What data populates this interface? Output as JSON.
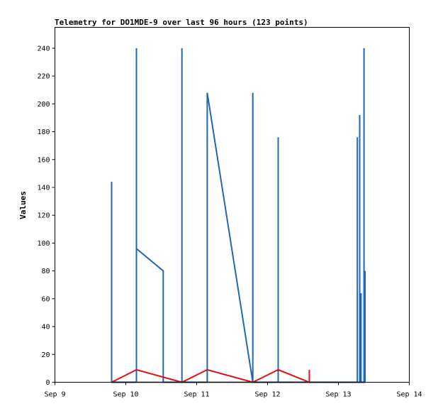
{
  "chart_data": {
    "type": "line",
    "title": "Telemetry for DO1MDE-9 over last 96 hours (123 points)",
    "xlabel": "",
    "ylabel": "Values",
    "xlim": [
      "2023-09-09 00:00",
      "2023-09-14 00:00"
    ],
    "ylim": [
      0,
      255
    ],
    "x_tick_labels": [
      "Sep 9",
      "Sep 10",
      "Sep 11",
      "Sep 12",
      "Sep 13",
      "Sep 14"
    ],
    "y_ticks": [
      0,
      20,
      40,
      60,
      80,
      100,
      120,
      140,
      160,
      180,
      200,
      220,
      240
    ],
    "grid": false,
    "legend": "none",
    "series": [
      {
        "color": "#1f68b8",
        "points": [
          [
            "2023-09-09 19:12",
            0
          ],
          [
            "2023-09-09 19:12",
            144
          ],
          [
            "2023-09-09 19:12",
            0
          ],
          [
            "2023-09-10 03:36",
            0
          ],
          [
            "2023-09-10 03:36",
            240
          ],
          [
            "2023-09-10 03:36",
            96
          ],
          [
            "2023-09-10 12:40",
            80
          ],
          [
            "2023-09-10 12:40",
            0
          ],
          [
            "2023-09-10 19:00",
            0
          ],
          [
            "2023-09-10 19:00",
            240
          ],
          [
            "2023-09-10 19:00",
            0
          ],
          [
            "2023-09-11 03:35",
            0
          ],
          [
            "2023-09-11 03:35",
            208
          ],
          [
            "2023-09-11 19:00",
            0
          ],
          [
            "2023-09-11 19:00",
            208
          ],
          [
            "2023-09-11 19:00",
            0
          ],
          [
            "2023-09-12 03:36",
            0
          ],
          [
            "2023-09-12 03:36",
            176
          ],
          [
            "2023-09-12 03:36",
            0
          ],
          [
            "2023-09-13 06:24",
            0
          ],
          [
            "2023-09-13 06:24",
            176
          ],
          [
            "2023-09-13 06:24",
            0
          ],
          [
            "2023-09-13 07:12",
            0
          ],
          [
            "2023-09-13 07:12",
            192
          ],
          [
            "2023-09-13 07:12",
            0
          ],
          [
            "2023-09-13 07:40",
            0
          ],
          [
            "2023-09-13 07:40",
            64
          ],
          [
            "2023-09-13 07:40",
            0
          ],
          [
            "2023-09-13 08:40",
            0
          ],
          [
            "2023-09-13 08:40",
            240
          ],
          [
            "2023-09-13 08:40",
            0
          ],
          [
            "2023-09-13 09:00",
            0
          ],
          [
            "2023-09-13 09:00",
            80
          ],
          [
            "2023-09-13 09:00",
            0
          ]
        ]
      },
      {
        "color": "#e01010",
        "points": [
          [
            "2023-09-09 19:12",
            0
          ],
          [
            "2023-09-10 03:36",
            9
          ],
          [
            "2023-09-10 19:00",
            0
          ],
          [
            "2023-09-11 03:35",
            9
          ],
          [
            "2023-09-11 19:00",
            0
          ],
          [
            "2023-09-12 03:36",
            9
          ],
          [
            "2023-09-12 14:10",
            0
          ],
          [
            "2023-09-12 14:10",
            9
          ],
          [
            "2023-09-12 14:10",
            0
          ]
        ]
      },
      {
        "color": "#000000",
        "points": [
          [
            "2023-09-09 19:12",
            0
          ],
          [
            "2023-09-13 09:00",
            0
          ]
        ]
      }
    ]
  }
}
